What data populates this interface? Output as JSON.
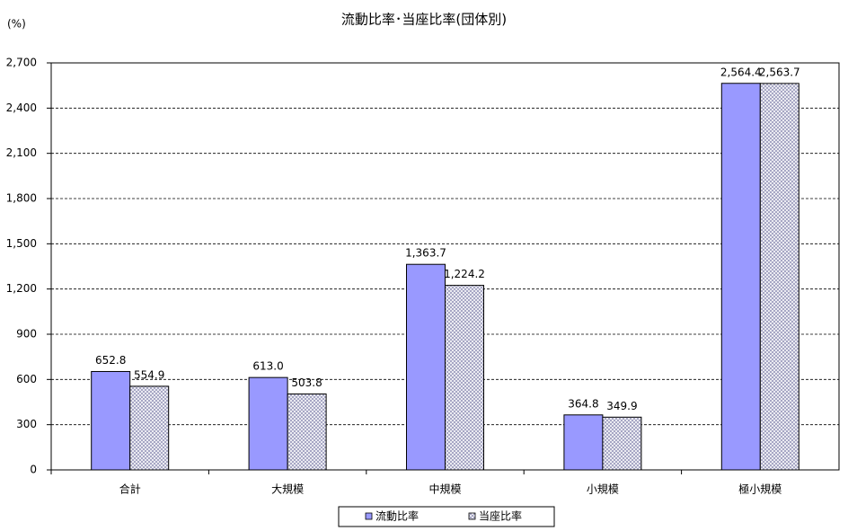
{
  "chart_data": {
    "type": "bar",
    "title": "流動比率･当座比率(団体別)",
    "y_unit": "(%)",
    "categories": [
      "合計",
      "大規模",
      "中規模",
      "小規模",
      "極小規模"
    ],
    "series": [
      {
        "name": "流動比率",
        "color": "#9999ff",
        "values": [
          652.8,
          613.0,
          1363.7,
          364.8,
          2564.4
        ],
        "value_labels": [
          "652.8",
          "613.0",
          "1,363.7",
          "364.8",
          "2,564.4"
        ]
      },
      {
        "name": "当座比率",
        "color": "#9999bb",
        "pattern": "crosshatch",
        "values": [
          554.9,
          503.8,
          1224.2,
          349.9,
          2563.7
        ],
        "value_labels": [
          "554.9",
          "503.8",
          "1,224.2",
          "349.9",
          "2,563.7"
        ]
      }
    ],
    "ylim": [
      0,
      2700
    ],
    "yticks": [
      0,
      300,
      600,
      900,
      {
        "value": 1200,
        "label": "1,200"
      },
      {
        "value": 1500,
        "label": "1,500"
      },
      {
        "value": 1800,
        "label": "1,800"
      },
      {
        "value": 2100,
        "label": "2,100"
      },
      {
        "value": 2400,
        "label": "2,400"
      },
      {
        "value": 2700,
        "label": "2,700"
      }
    ],
    "grid": true,
    "legend": "bottom"
  }
}
